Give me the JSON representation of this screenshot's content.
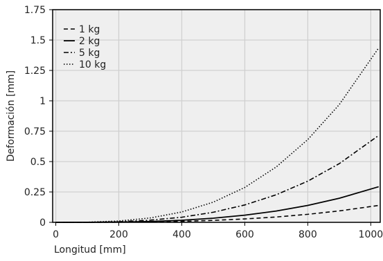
{
  "chart_data": {
    "type": "line",
    "xlabel": "Longitud [mm]",
    "ylabel": "Deformación [mm]",
    "xlim": [
      -10,
      1030
    ],
    "ylim": [
      0,
      1.75
    ],
    "x_ticks": [
      0,
      200,
      400,
      600,
      800,
      1000
    ],
    "x_tick_labels": [
      "0",
      "200",
      "400",
      "600",
      "800",
      "1000"
    ],
    "y_ticks": [
      0,
      0.25,
      0.5,
      0.75,
      1,
      1.25,
      1.5,
      1.75
    ],
    "y_tick_labels": [
      "0",
      "0.25",
      "0.5",
      "0.75",
      "1",
      "1.25",
      "1.5",
      "1.75"
    ],
    "grid": true,
    "legend_position": "top-left",
    "background_color": "#efefef",
    "grid_color": "#d0d0d0",
    "x": [
      0,
      100,
      200,
      300,
      400,
      500,
      600,
      700,
      800,
      900,
      1025
    ],
    "series": [
      {
        "name": "1 kg",
        "dash": "dashed",
        "color": "#000000",
        "values": [
          0,
          0.0001,
          0.001,
          0.0035,
          0.008,
          0.016,
          0.028,
          0.044,
          0.066,
          0.094,
          0.139
        ]
      },
      {
        "name": "2 kg",
        "dash": "solid",
        "color": "#000000",
        "values": [
          0,
          0.0003,
          0.002,
          0.007,
          0.017,
          0.034,
          0.059,
          0.093,
          0.139,
          0.198,
          0.293
        ]
      },
      {
        "name": "5 kg",
        "dash": "dashdot",
        "color": "#000000",
        "values": [
          0,
          0.0007,
          0.005,
          0.018,
          0.042,
          0.083,
          0.143,
          0.227,
          0.339,
          0.483,
          0.715
        ]
      },
      {
        "name": "10 kg",
        "dash": "dotted",
        "color": "#000000",
        "values": [
          0,
          0.0013,
          0.011,
          0.036,
          0.085,
          0.166,
          0.287,
          0.456,
          0.681,
          0.969,
          1.435
        ]
      }
    ]
  }
}
